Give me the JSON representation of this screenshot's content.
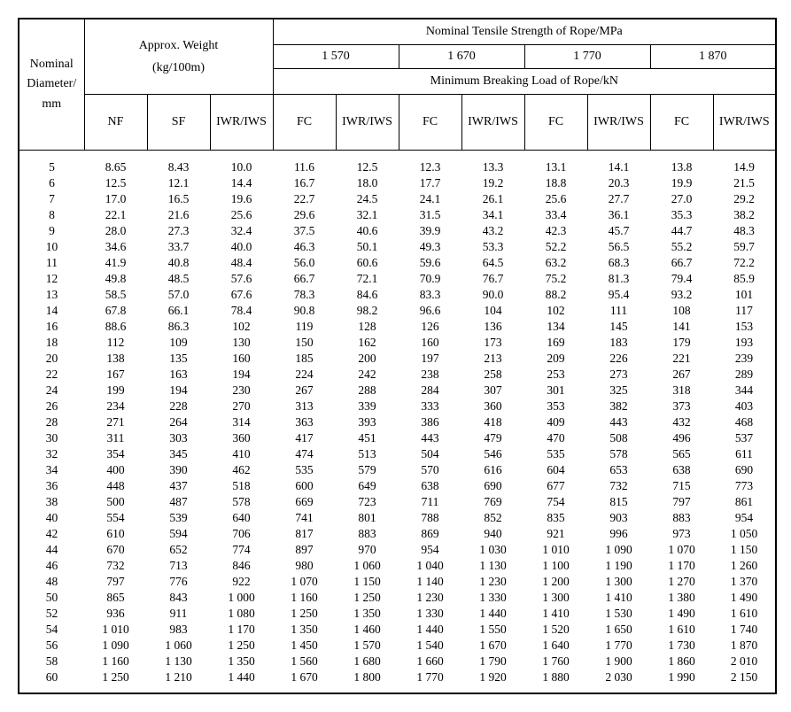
{
  "table": {
    "header": {
      "diameter": "Nominal Diameter/ mm",
      "weight_title": "Approx. Weight",
      "weight_unit": "(kg/100m)",
      "tensile_title": "Nominal Tensile Strength of Rope/MPa",
      "breaking_title": "Minimum Breaking Load of Rope/kN",
      "strength_groups": [
        "1 570",
        "1 670",
        "1 770",
        "1 870"
      ],
      "weight_cols": [
        "NF",
        "SF",
        "IWR/IWS"
      ],
      "strength_cols": [
        "FC",
        "IWR/IWS"
      ]
    },
    "style": {
      "border_color": "#000000",
      "background_color": "#ffffff",
      "text_color": "#000000",
      "font_family": "Times New Roman",
      "header_fontsize": 14,
      "data_fontsize": 13.5,
      "outer_border_width": 2,
      "inner_border_width": 1.5,
      "col_widths": {
        "diameter": 74,
        "weight": 71,
        "strength": 71
      }
    },
    "rows": [
      {
        "d": "5",
        "w": [
          "8.65",
          "8.43",
          "10.0"
        ],
        "s": [
          "11.6",
          "12.5",
          "12.3",
          "13.3",
          "13.1",
          "14.1",
          "13.8",
          "14.9"
        ]
      },
      {
        "d": "6",
        "w": [
          "12.5",
          "12.1",
          "14.4"
        ],
        "s": [
          "16.7",
          "18.0",
          "17.7",
          "19.2",
          "18.8",
          "20.3",
          "19.9",
          "21.5"
        ]
      },
      {
        "d": "7",
        "w": [
          "17.0",
          "16.5",
          "19.6"
        ],
        "s": [
          "22.7",
          "24.5",
          "24.1",
          "26.1",
          "25.6",
          "27.7",
          "27.0",
          "29.2"
        ]
      },
      {
        "d": "8",
        "w": [
          "22.1",
          "21.6",
          "25.6"
        ],
        "s": [
          "29.6",
          "32.1",
          "31.5",
          "34.1",
          "33.4",
          "36.1",
          "35.3",
          "38.2"
        ]
      },
      {
        "d": "9",
        "w": [
          "28.0",
          "27.3",
          "32.4"
        ],
        "s": [
          "37.5",
          "40.6",
          "39.9",
          "43.2",
          "42.3",
          "45.7",
          "44.7",
          "48.3"
        ]
      },
      {
        "d": "10",
        "w": [
          "34.6",
          "33.7",
          "40.0"
        ],
        "s": [
          "46.3",
          "50.1",
          "49.3",
          "53.3",
          "52.2",
          "56.5",
          "55.2",
          "59.7"
        ]
      },
      {
        "d": "11",
        "w": [
          "41.9",
          "40.8",
          "48.4"
        ],
        "s": [
          "56.0",
          "60.6",
          "59.6",
          "64.5",
          "63.2",
          "68.3",
          "66.7",
          "72.2"
        ]
      },
      {
        "d": "12",
        "w": [
          "49.8",
          "48.5",
          "57.6"
        ],
        "s": [
          "66.7",
          "72.1",
          "70.9",
          "76.7",
          "75.2",
          "81.3",
          "79.4",
          "85.9"
        ]
      },
      {
        "d": "13",
        "w": [
          "58.5",
          "57.0",
          "67.6"
        ],
        "s": [
          "78.3",
          "84.6",
          "83.3",
          "90.0",
          "88.2",
          "95.4",
          "93.2",
          "101"
        ]
      },
      {
        "d": "14",
        "w": [
          "67.8",
          "66.1",
          "78.4"
        ],
        "s": [
          "90.8",
          "98.2",
          "96.6",
          "104",
          "102",
          "111",
          "108",
          "117"
        ]
      },
      {
        "d": "16",
        "w": [
          "88.6",
          "86.3",
          "102"
        ],
        "s": [
          "119",
          "128",
          "126",
          "136",
          "134",
          "145",
          "141",
          "153"
        ]
      },
      {
        "d": "18",
        "w": [
          "112",
          "109",
          "130"
        ],
        "s": [
          "150",
          "162",
          "160",
          "173",
          "169",
          "183",
          "179",
          "193"
        ]
      },
      {
        "d": "20",
        "w": [
          "138",
          "135",
          "160"
        ],
        "s": [
          "185",
          "200",
          "197",
          "213",
          "209",
          "226",
          "221",
          "239"
        ]
      },
      {
        "d": "22",
        "w": [
          "167",
          "163",
          "194"
        ],
        "s": [
          "224",
          "242",
          "238",
          "258",
          "253",
          "273",
          "267",
          "289"
        ]
      },
      {
        "d": "24",
        "w": [
          "199",
          "194",
          "230"
        ],
        "s": [
          "267",
          "288",
          "284",
          "307",
          "301",
          "325",
          "318",
          "344"
        ]
      },
      {
        "d": "26",
        "w": [
          "234",
          "228",
          "270"
        ],
        "s": [
          "313",
          "339",
          "333",
          "360",
          "353",
          "382",
          "373",
          "403"
        ]
      },
      {
        "d": "28",
        "w": [
          "271",
          "264",
          "314"
        ],
        "s": [
          "363",
          "393",
          "386",
          "418",
          "409",
          "443",
          "432",
          "468"
        ]
      },
      {
        "d": "30",
        "w": [
          "311",
          "303",
          "360"
        ],
        "s": [
          "417",
          "451",
          "443",
          "479",
          "470",
          "508",
          "496",
          "537"
        ]
      },
      {
        "d": "32",
        "w": [
          "354",
          "345",
          "410"
        ],
        "s": [
          "474",
          "513",
          "504",
          "546",
          "535",
          "578",
          "565",
          "611"
        ]
      },
      {
        "d": "34",
        "w": [
          "400",
          "390",
          "462"
        ],
        "s": [
          "535",
          "579",
          "570",
          "616",
          "604",
          "653",
          "638",
          "690"
        ]
      },
      {
        "d": "36",
        "w": [
          "448",
          "437",
          "518"
        ],
        "s": [
          "600",
          "649",
          "638",
          "690",
          "677",
          "732",
          "715",
          "773"
        ]
      },
      {
        "d": "38",
        "w": [
          "500",
          "487",
          "578"
        ],
        "s": [
          "669",
          "723",
          "711",
          "769",
          "754",
          "815",
          "797",
          "861"
        ]
      },
      {
        "d": "40",
        "w": [
          "554",
          "539",
          "640"
        ],
        "s": [
          "741",
          "801",
          "788",
          "852",
          "835",
          "903",
          "883",
          "954"
        ]
      },
      {
        "d": "42",
        "w": [
          "610",
          "594",
          "706"
        ],
        "s": [
          "817",
          "883",
          "869",
          "940",
          "921",
          "996",
          "973",
          "1 050"
        ]
      },
      {
        "d": "44",
        "w": [
          "670",
          "652",
          "774"
        ],
        "s": [
          "897",
          "970",
          "954",
          "1 030",
          "1 010",
          "1 090",
          "1 070",
          "1 150"
        ]
      },
      {
        "d": "46",
        "w": [
          "732",
          "713",
          "846"
        ],
        "s": [
          "980",
          "1 060",
          "1 040",
          "1 130",
          "1 100",
          "1 190",
          "1 170",
          "1 260"
        ]
      },
      {
        "d": "48",
        "w": [
          "797",
          "776",
          "922"
        ],
        "s": [
          "1 070",
          "1 150",
          "1 140",
          "1 230",
          "1 200",
          "1 300",
          "1 270",
          "1 370"
        ]
      },
      {
        "d": "50",
        "w": [
          "865",
          "843",
          "1 000"
        ],
        "s": [
          "1 160",
          "1 250",
          "1 230",
          "1 330",
          "1 300",
          "1 410",
          "1 380",
          "1 490"
        ]
      },
      {
        "d": "52",
        "w": [
          "936",
          "911",
          "1 080"
        ],
        "s": [
          "1 250",
          "1 350",
          "1 330",
          "1 440",
          "1 410",
          "1 530",
          "1 490",
          "1 610"
        ]
      },
      {
        "d": "54",
        "w": [
          "1 010",
          "983",
          "1 170"
        ],
        "s": [
          "1 350",
          "1 460",
          "1 440",
          "1 550",
          "1 520",
          "1 650",
          "1 610",
          "1 740"
        ]
      },
      {
        "d": "56",
        "w": [
          "1 090",
          "1 060",
          "1 250"
        ],
        "s": [
          "1 450",
          "1 570",
          "1 540",
          "1 670",
          "1 640",
          "1 770",
          "1 730",
          "1 870"
        ]
      },
      {
        "d": "58",
        "w": [
          "1 160",
          "1 130",
          "1 350"
        ],
        "s": [
          "1 560",
          "1 680",
          "1 660",
          "1 790",
          "1 760",
          "1 900",
          "1 860",
          "2 010"
        ]
      },
      {
        "d": "60",
        "w": [
          "1 250",
          "1 210",
          "1 440"
        ],
        "s": [
          "1 670",
          "1 800",
          "1 770",
          "1 920",
          "1 880",
          "2 030",
          "1 990",
          "2 150"
        ]
      }
    ]
  }
}
